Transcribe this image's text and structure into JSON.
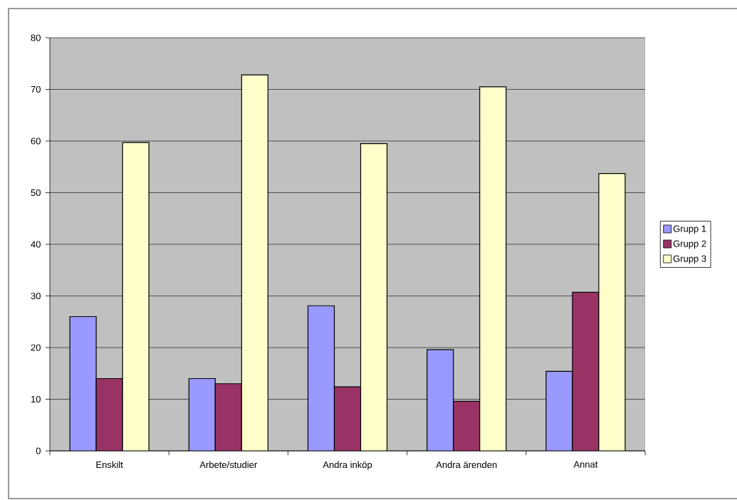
{
  "chart_data": {
    "type": "bar",
    "categories": [
      "Enskilt",
      "Arbete/studier",
      "Andra inköp",
      "Andra ärenden",
      "Annat"
    ],
    "series": [
      {
        "name": "Grupp 1",
        "color": "#9999ff",
        "values": [
          26.0,
          14.0,
          28.1,
          19.6,
          15.4
        ]
      },
      {
        "name": "Grupp 2",
        "color": "#993366",
        "values": [
          14.0,
          13.0,
          12.4,
          9.6,
          30.7
        ]
      },
      {
        "name": "Grupp 3",
        "color": "#ffffcc",
        "values": [
          59.7,
          72.8,
          59.5,
          70.5,
          53.7
        ]
      }
    ],
    "ylim": [
      0,
      80
    ],
    "yticks": [
      0,
      10,
      20,
      30,
      40,
      50,
      60,
      70,
      80
    ],
    "grid": "y",
    "legend": "right"
  }
}
